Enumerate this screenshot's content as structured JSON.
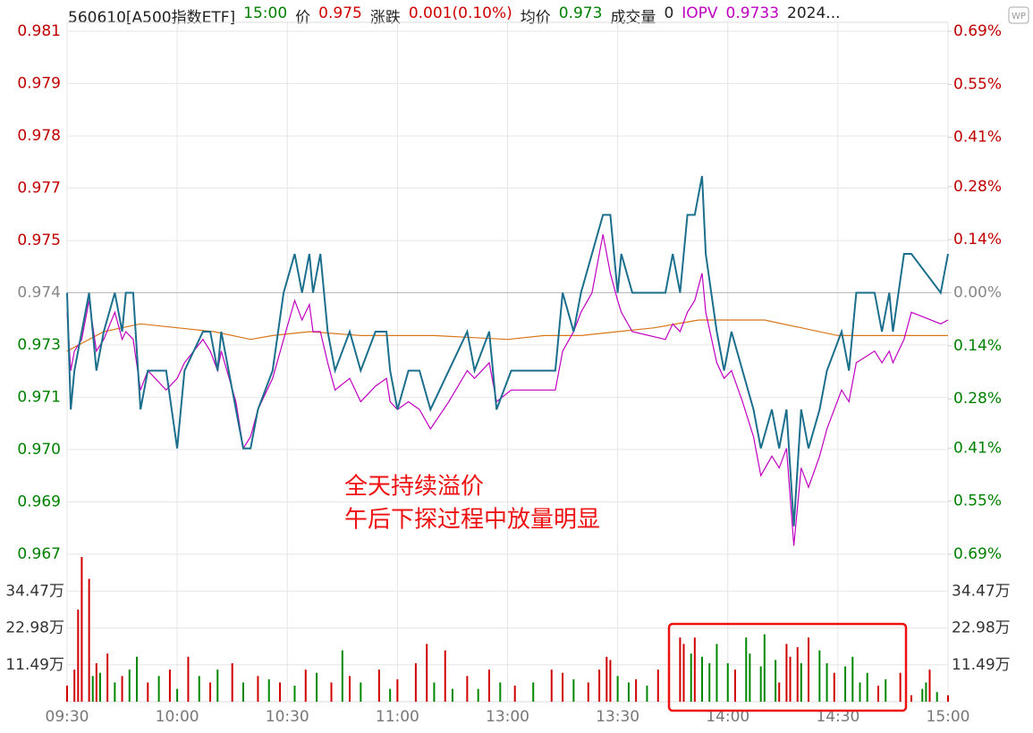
{
  "header": {
    "code": "560610[A500指数ETF]",
    "time": "15:00",
    "price_label": "价",
    "price": "0.975",
    "change_label": "涨跌",
    "change": "0.001(0.10%)",
    "avg_label": "均价",
    "avg": "0.973",
    "volume_label": "成交量",
    "volume": "0",
    "iopv_label": "IOPV",
    "iopv": "0.9733",
    "date": "2024...",
    "logo": "WP"
  },
  "chart_data": [
    {
      "type": "line",
      "annotations": [
        "全天持续溢价",
        "午后下探过程中放量明显"
      ],
      "grid": true,
      "xlim": [
        0,
        240
      ],
      "xticks": [
        {
          "value": 0,
          "label": "09:30"
        },
        {
          "value": 30,
          "label": "10:00"
        },
        {
          "value": 60,
          "label": "10:30"
        },
        {
          "value": 90,
          "label": "11:00"
        },
        {
          "value": 120,
          "label": "13:00"
        },
        {
          "value": 150,
          "label": "13:30"
        },
        {
          "value": 180,
          "label": "14:00"
        },
        {
          "value": 210,
          "label": "14:30"
        },
        {
          "value": 240,
          "label": "15:00"
        }
      ],
      "ylim": [
        0.96728,
        0.98072
      ],
      "yticks": [
        {
          "value": 0.98072,
          "label": "0.981"
        },
        {
          "value": 0.97938,
          "label": "0.979"
        },
        {
          "value": 0.97803,
          "label": "0.978"
        },
        {
          "value": 0.97669,
          "label": "0.977"
        },
        {
          "value": 0.97534,
          "label": "0.975"
        },
        0.974,
        {
          "value": 0.97266,
          "label": "0.973"
        },
        {
          "value": 0.97131,
          "label": "0.971"
        },
        {
          "value": 0.96997,
          "label": "0.970"
        },
        {
          "value": 0.96862,
          "label": "0.969"
        },
        {
          "value": 0.96728,
          "label": "0.967"
        }
      ],
      "y2lim": [
        -0.69,
        0.69
      ],
      "y2ticks": [
        {
          "value": 0.69,
          "label": "0.69%"
        },
        {
          "value": 0.55,
          "label": "0.55%"
        },
        {
          "value": 0.41,
          "label": "0.41%"
        },
        {
          "value": 0.28,
          "label": "0.28%"
        },
        {
          "value": 0.14,
          "label": "0.14%"
        },
        {
          "value": 0,
          "label": "0.00%"
        },
        {
          "value": -0.14,
          "label": "0.14%"
        },
        {
          "value": -0.28,
          "label": "0.28%"
        },
        {
          "value": -0.41,
          "label": "0.41%"
        },
        {
          "value": -0.55,
          "label": "0.55%"
        },
        {
          "value": -0.69,
          "label": "0.69%"
        }
      ],
      "series": [
        {
          "color": "#d9761a",
          "x": [
            0,
            10,
            20,
            30,
            40,
            50,
            56,
            66,
            80,
            100,
            120,
            130,
            140,
            150,
            160,
            172,
            180,
            190,
            200,
            210,
            240
          ],
          "values": [
            0.9725,
            0.973,
            0.9732,
            0.9731,
            0.973,
            0.9728,
            0.9729,
            0.973,
            0.9729,
            0.9729,
            0.9728,
            0.9729,
            0.9729,
            0.973,
            0.9731,
            0.9733,
            0.9733,
            0.9733,
            0.9731,
            0.9729,
            0.9729
          ]
        },
        {
          "color": "#c000c0",
          "x": [
            0,
            1,
            2,
            4,
            6,
            8,
            10,
            13,
            15,
            16,
            18,
            20,
            22,
            27,
            30,
            32,
            37,
            39,
            41,
            42,
            46,
            48,
            50,
            52,
            56,
            59,
            62,
            64,
            66,
            67,
            69,
            71,
            73,
            77,
            80,
            84,
            87,
            88,
            90,
            93,
            96,
            99,
            104,
            109,
            111,
            115,
            117,
            121,
            128,
            133,
            135,
            138,
            140,
            143,
            146,
            148,
            150,
            151,
            154,
            163,
            165,
            167,
            169,
            171,
            173,
            174,
            177,
            179,
            181,
            184,
            187,
            189,
            192,
            194,
            196,
            198,
            200,
            202,
            205,
            207,
            211,
            213,
            215,
            220,
            222,
            224,
            225,
            228,
            230,
            238,
            240
          ],
          "values": [
            0.9735,
            0.972,
            0.9725,
            0.9728,
            0.9738,
            0.9725,
            0.9728,
            0.9735,
            0.9728,
            0.973,
            0.9728,
            0.9715,
            0.972,
            0.9715,
            0.9718,
            0.9722,
            0.9728,
            0.9725,
            0.972,
            0.9725,
            0.9712,
            0.97,
            0.9703,
            0.971,
            0.9718,
            0.9728,
            0.9738,
            0.9733,
            0.9737,
            0.973,
            0.973,
            0.9722,
            0.9715,
            0.9718,
            0.9712,
            0.9716,
            0.9718,
            0.9712,
            0.971,
            0.9712,
            0.971,
            0.9705,
            0.9712,
            0.972,
            0.9718,
            0.9722,
            0.9712,
            0.9715,
            0.9715,
            0.9715,
            0.9725,
            0.973,
            0.9735,
            0.974,
            0.9755,
            0.9745,
            0.9738,
            0.9735,
            0.973,
            0.9728,
            0.9732,
            0.973,
            0.9735,
            0.9738,
            0.9745,
            0.9735,
            0.9722,
            0.9718,
            0.972,
            0.9712,
            0.9703,
            0.9693,
            0.9698,
            0.9695,
            0.97,
            0.9675,
            0.9695,
            0.969,
            0.9698,
            0.9705,
            0.9715,
            0.9712,
            0.9722,
            0.9725,
            0.9722,
            0.9725,
            0.9722,
            0.9728,
            0.9735,
            0.9732,
            0.9733
          ]
        },
        {
          "color": "#1b6f8c",
          "x": [
            0,
            1,
            2,
            4,
            6,
            8,
            10,
            13,
            15,
            16,
            18,
            20,
            22,
            27,
            30,
            32,
            37,
            39,
            41,
            42,
            46,
            48,
            50,
            52,
            56,
            59,
            62,
            64,
            66,
            67,
            69,
            71,
            73,
            77,
            80,
            84,
            87,
            88,
            90,
            93,
            96,
            99,
            104,
            109,
            111,
            115,
            117,
            121,
            128,
            133,
            135,
            138,
            140,
            143,
            146,
            148,
            150,
            151,
            154,
            163,
            165,
            167,
            169,
            171,
            173,
            174,
            177,
            179,
            181,
            184,
            187,
            189,
            192,
            194,
            196,
            198,
            200,
            202,
            205,
            207,
            211,
            213,
            215,
            220,
            222,
            224,
            225,
            228,
            230,
            238,
            240
          ],
          "values": [
            0.974,
            0.971,
            0.972,
            0.973,
            0.974,
            0.972,
            0.973,
            0.974,
            0.973,
            0.974,
            0.974,
            0.971,
            0.972,
            0.972,
            0.97,
            0.972,
            0.973,
            0.973,
            0.972,
            0.973,
            0.971,
            0.97,
            0.97,
            0.971,
            0.972,
            0.974,
            0.975,
            0.974,
            0.975,
            0.974,
            0.975,
            0.973,
            0.972,
            0.973,
            0.972,
            0.973,
            0.973,
            0.972,
            0.971,
            0.972,
            0.972,
            0.971,
            0.972,
            0.973,
            0.972,
            0.973,
            0.971,
            0.972,
            0.972,
            0.972,
            0.974,
            0.973,
            0.974,
            0.975,
            0.976,
            0.976,
            0.974,
            0.975,
            0.974,
            0.974,
            0.975,
            0.974,
            0.976,
            0.976,
            0.977,
            0.975,
            0.973,
            0.972,
            0.973,
            0.972,
            0.971,
            0.97,
            0.971,
            0.97,
            0.971,
            0.968,
            0.971,
            0.97,
            0.971,
            0.972,
            0.973,
            0.972,
            0.974,
            0.974,
            0.973,
            0.974,
            0.973,
            0.975,
            0.975,
            0.974,
            0.975
          ]
        }
      ]
    },
    {
      "type": "bar",
      "ylim": [
        0,
        45.96
      ],
      "yticks": [
        {
          "value": 11.49,
          "label": "11.49万"
        },
        {
          "value": 22.98,
          "label": "22.98万"
        },
        {
          "value": 34.47,
          "label": "34.47万"
        }
      ],
      "x": [
        0,
        2,
        3,
        4,
        6,
        7,
        8,
        9,
        11,
        13,
        15,
        17,
        19,
        22,
        25,
        28,
        30,
        33,
        36,
        39,
        41,
        45,
        48,
        52,
        55,
        58,
        62,
        65,
        68,
        72,
        75,
        77,
        80,
        85,
        88,
        90,
        95,
        98,
        100,
        103,
        105,
        109,
        112,
        115,
        118,
        122,
        127,
        132,
        135,
        138,
        142,
        145,
        147,
        148,
        150,
        153,
        155,
        158,
        161,
        164,
        167,
        168,
        170,
        171,
        173,
        175,
        177,
        180,
        182,
        185,
        186,
        189,
        190,
        193,
        194,
        196,
        197,
        199,
        200,
        202,
        205,
        207,
        209,
        212,
        214,
        216,
        218,
        221,
        223,
        227,
        230,
        233,
        234,
        235,
        237,
        240
      ],
      "values": [
        5,
        10,
        28.7,
        45.1,
        38.3,
        8,
        12,
        9,
        15,
        6,
        8,
        10,
        14,
        6,
        8,
        10,
        4,
        14,
        8,
        6,
        10,
        12,
        6,
        8,
        7,
        6,
        5,
        10,
        9,
        6,
        16,
        8,
        6,
        10,
        4,
        7,
        12,
        18,
        6,
        16,
        4,
        8,
        4,
        10,
        6,
        5,
        6,
        10,
        9,
        7,
        6,
        10,
        14,
        13,
        8,
        6,
        7,
        5,
        10,
        16,
        20,
        18,
        15,
        20,
        14,
        12,
        18,
        12,
        10,
        20,
        15,
        11,
        21,
        13,
        6,
        18,
        14,
        17,
        12,
        20,
        16,
        12,
        9,
        11,
        14,
        6,
        9,
        5,
        7,
        9,
        2,
        4,
        6,
        10,
        3,
        2
      ],
      "colors": [
        "#d00000",
        "#d00000",
        "#d00000",
        "#d00000",
        "#d00000",
        "#008800",
        "#d00000",
        "#008800",
        "#d00000",
        "#008800",
        "#d00000",
        "#008800",
        "#008800",
        "#d00000",
        "#008800",
        "#d00000",
        "#008800",
        "#d00000",
        "#008800",
        "#d00000",
        "#008800",
        "#d00000",
        "#008800",
        "#d00000",
        "#008800",
        "#d00000",
        "#008800",
        "#d00000",
        "#008800",
        "#d00000",
        "#008800",
        "#d00000",
        "#008800",
        "#d00000",
        "#008800",
        "#d00000",
        "#d00000",
        "#d00000",
        "#008800",
        "#d00000",
        "#008800",
        "#d00000",
        "#008800",
        "#d00000",
        "#008800",
        "#d00000",
        "#008800",
        "#d00000",
        "#d00000",
        "#008800",
        "#d00000",
        "#d00000",
        "#d00000",
        "#d00000",
        "#008800",
        "#008800",
        "#d00000",
        "#008800",
        "#d00000",
        "#d00000",
        "#d00000",
        "#d00000",
        "#008800",
        "#d00000",
        "#008800",
        "#008800",
        "#008800",
        "#008800",
        "#d00000",
        "#008800",
        "#008800",
        "#008800",
        "#008800",
        "#008800",
        "#d00000",
        "#d00000",
        "#d00000",
        "#d00000",
        "#008800",
        "#d00000",
        "#008800",
        "#008800",
        "#d00000",
        "#008800",
        "#008800",
        "#008800",
        "#008800",
        "#d00000",
        "#008800",
        "#d00000",
        "#d00000",
        "#008800",
        "#008800",
        "#d00000",
        "#008800",
        "#d00000"
      ]
    }
  ]
}
